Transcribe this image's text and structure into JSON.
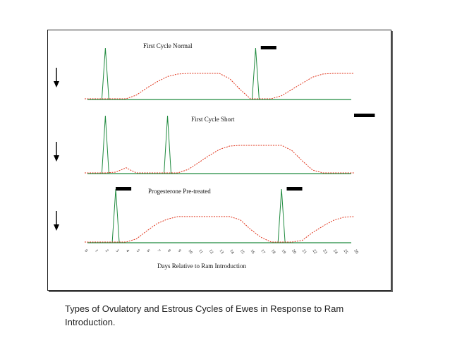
{
  "caption": "Types of Ovulatory and Estrous Cycles of Ewes in Response to Ram Introduction.",
  "colors": {
    "ovulation": "#1f8a3e",
    "progesterone": "#e0341b",
    "baseline": "#1f8a3e",
    "marker": "#000000"
  },
  "icons": {
    "ram_introduction": "down-arrow-icon",
    "estrus": "black-bar-marker"
  },
  "chart_data": {
    "type": "line",
    "xlabel": "Days Relative to Ram Introduction",
    "x_ticks": [
      "0",
      "1",
      "2",
      "3",
      "4",
      "5",
      "6",
      "7",
      "8",
      "9",
      "10",
      "11",
      "12",
      "13",
      "14",
      "15",
      "16",
      "17",
      "18",
      "19",
      "20",
      "21",
      "22",
      "23",
      "24",
      "25",
      "26"
    ],
    "xlim": [
      0,
      26
    ],
    "ylim": [
      0,
      1
    ],
    "grid": false,
    "panels": [
      {
        "title": "First Cycle Normal",
        "ovulation_peaks_day": [
          2,
          16.5
        ],
        "estrus_marker_days": [
          [
            17,
            18.5
          ]
        ],
        "progesterone": {
          "x": [
            0,
            1,
            2,
            3,
            4,
            5,
            6,
            7,
            8,
            9,
            10,
            11,
            12,
            13,
            14,
            15,
            16,
            17,
            18,
            19,
            20,
            21,
            22,
            23,
            24,
            25,
            26
          ],
          "y": [
            0,
            0,
            0,
            0,
            0,
            0.12,
            0.35,
            0.55,
            0.72,
            0.8,
            0.82,
            0.82,
            0.82,
            0.82,
            0.65,
            0.3,
            0,
            0,
            0,
            0.1,
            0.3,
            0.5,
            0.7,
            0.8,
            0.82,
            0.82,
            0.82
          ]
        }
      },
      {
        "title": "First Cycle Short",
        "ovulation_peaks_day": [
          2,
          8
        ],
        "estrus_marker_days": [
          [
            26,
            28
          ]
        ],
        "progesterone": {
          "x": [
            0,
            1,
            2,
            3,
            4,
            4.5,
            5,
            6,
            7,
            8,
            9,
            10,
            11,
            12,
            13,
            14,
            15,
            16,
            17,
            18,
            19,
            20,
            21,
            22,
            23,
            24,
            25,
            26
          ],
          "y": [
            0,
            0,
            0,
            0.02,
            0.15,
            0.07,
            0,
            0,
            0,
            0,
            0,
            0.1,
            0.3,
            0.5,
            0.68,
            0.78,
            0.8,
            0.8,
            0.8,
            0.8,
            0.8,
            0.65,
            0.35,
            0.08,
            0,
            0,
            0,
            0
          ]
        }
      },
      {
        "title": "Progesterone Pre-treated",
        "ovulation_peaks_day": [
          3,
          19
        ],
        "estrus_marker_days": [
          [
            3,
            4.5
          ],
          [
            19.5,
            21
          ]
        ],
        "progesterone": {
          "x": [
            0,
            1,
            2,
            3,
            4,
            5,
            6,
            7,
            8,
            9,
            10,
            11,
            12,
            13,
            14,
            15,
            16,
            17,
            18,
            19,
            20,
            21,
            22,
            23,
            24,
            25,
            26
          ],
          "y": [
            0,
            0,
            0,
            0,
            0,
            0.1,
            0.35,
            0.58,
            0.72,
            0.8,
            0.8,
            0.8,
            0.8,
            0.8,
            0.8,
            0.7,
            0.4,
            0.15,
            0,
            0,
            0,
            0.05,
            0.3,
            0.5,
            0.68,
            0.78,
            0.8
          ]
        }
      }
    ]
  }
}
